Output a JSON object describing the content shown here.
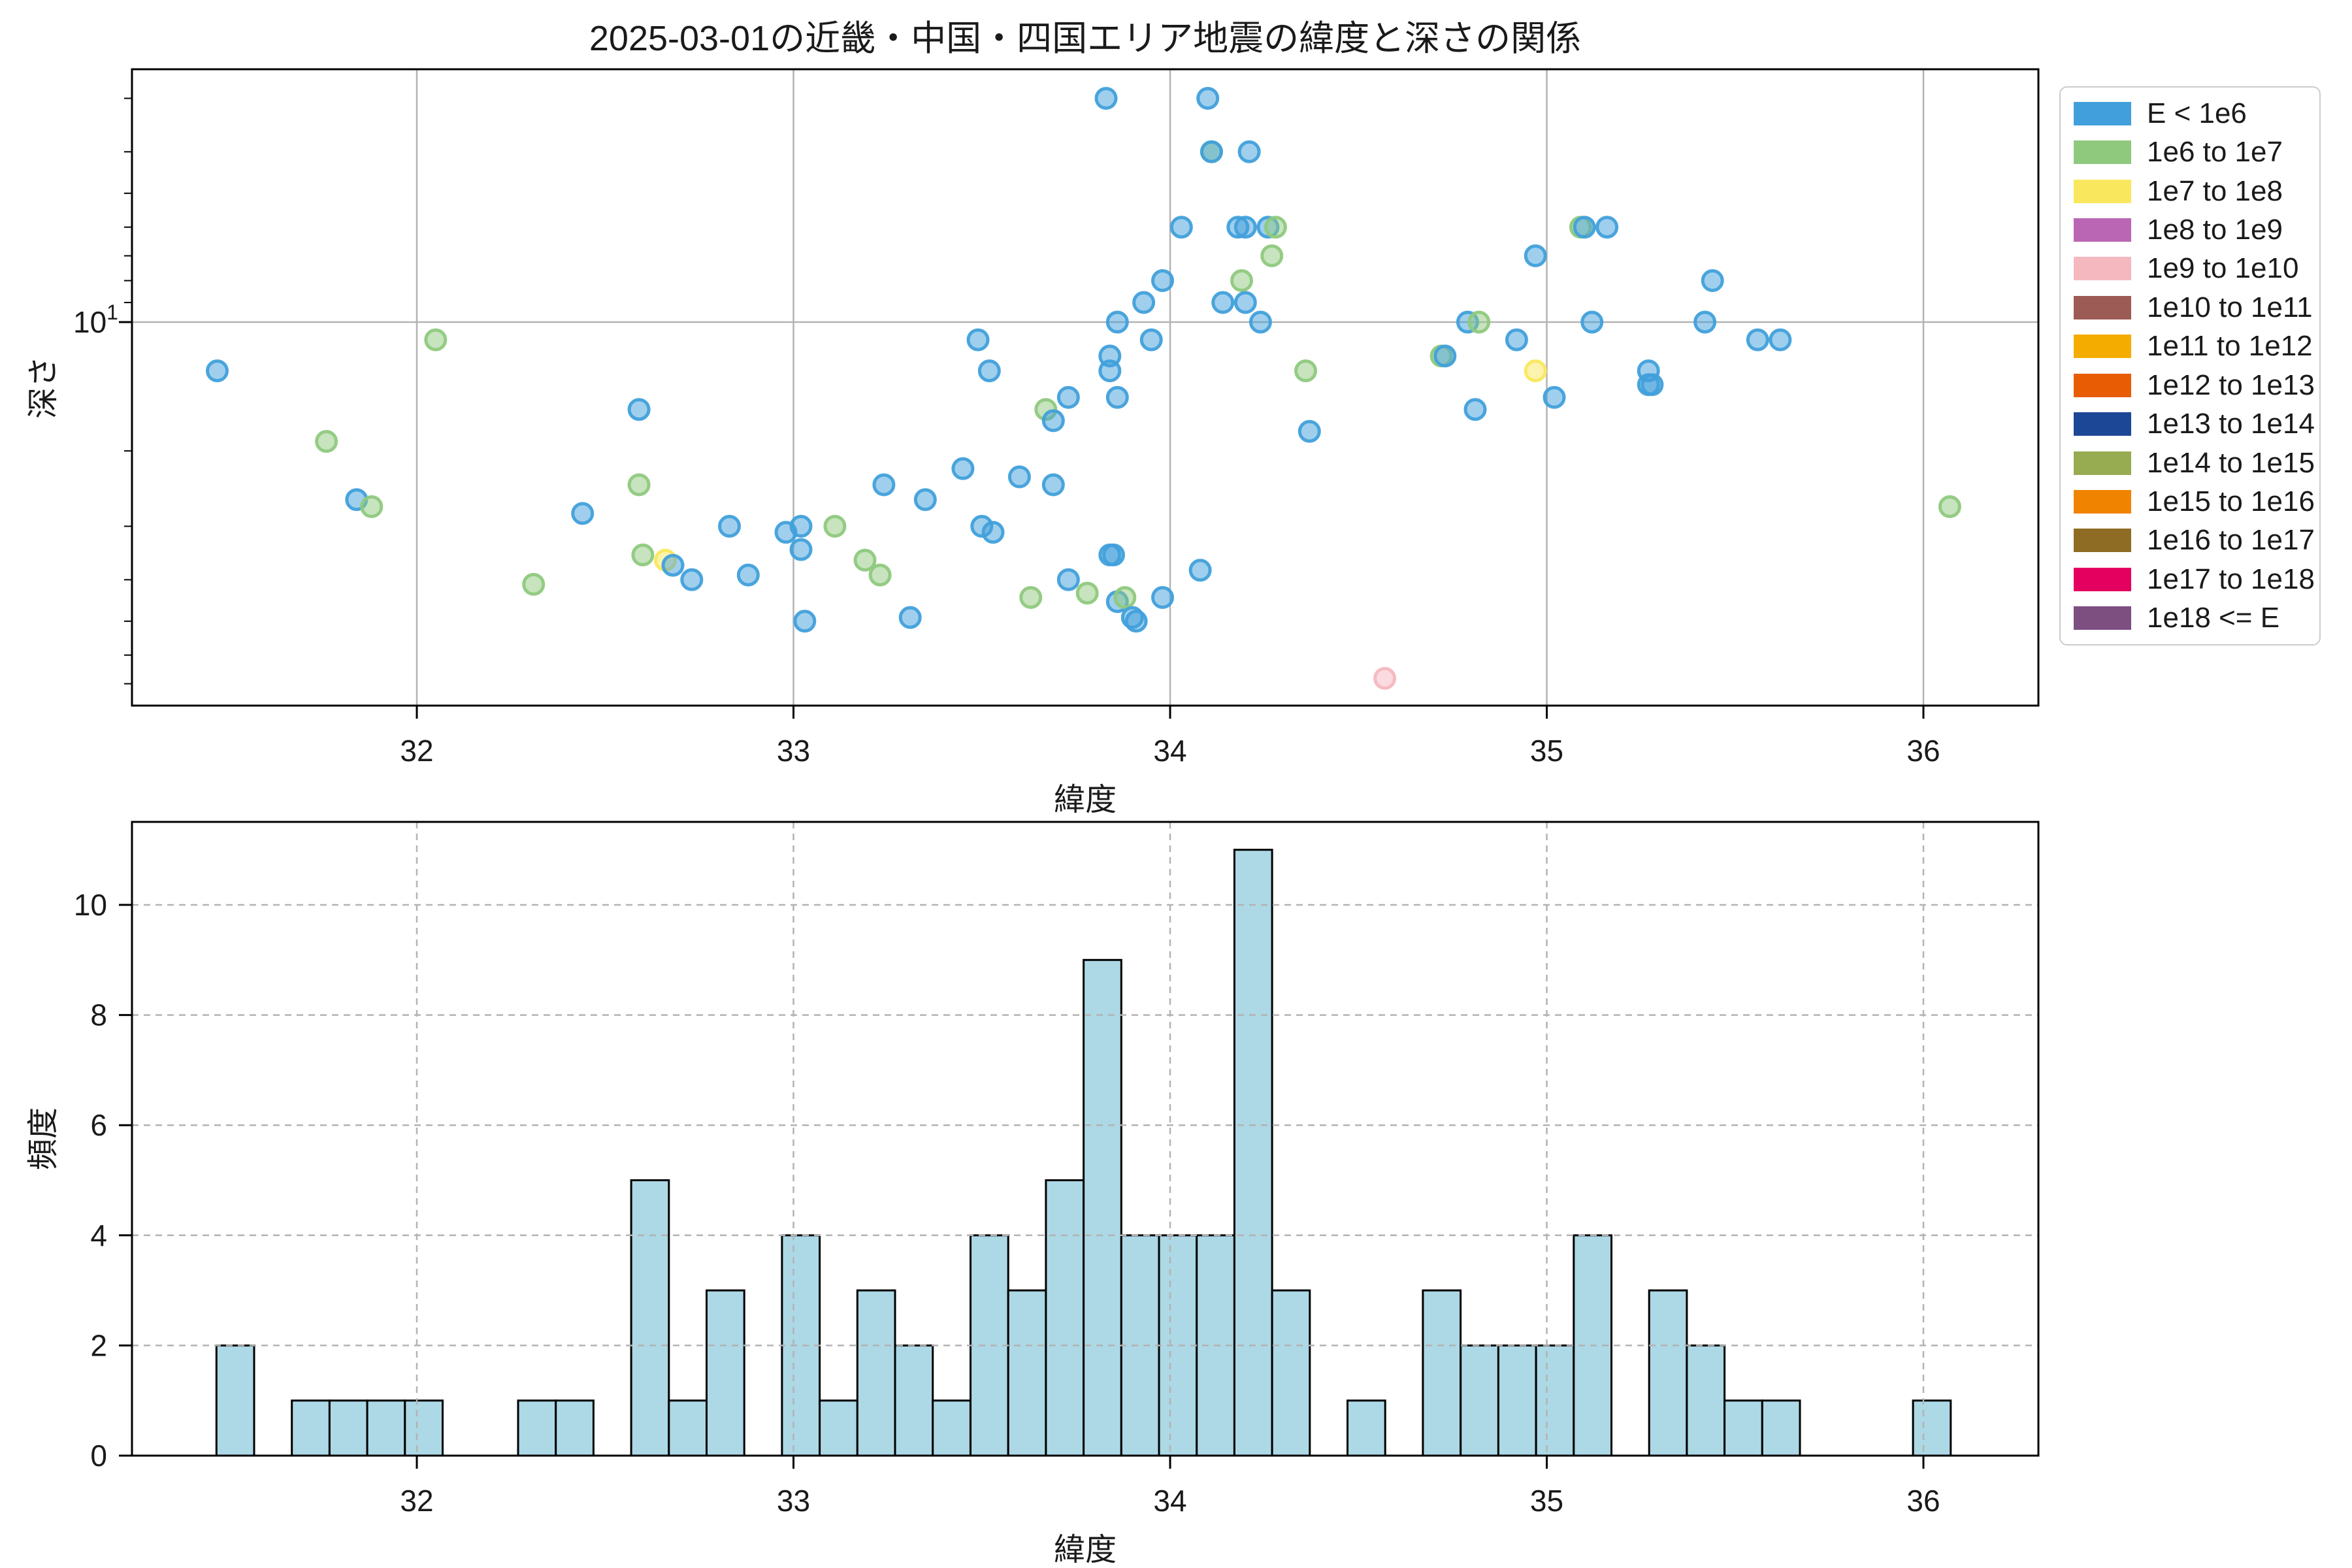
{
  "chart_data": [
    {
      "type": "scatter",
      "title": "2025-03-01の近畿・中国・四国エリア地震の緯度と深さの関係",
      "xlabel": "緯度",
      "ylabel": "深さ",
      "xlim": [
        31.24,
        36.3
      ],
      "x_ticks": [
        32,
        33,
        34,
        35,
        36
      ],
      "yaxis": {
        "scale": "log",
        "inverted": true,
        "top_value": 2.55,
        "bottom_value": 78.7,
        "major_tick_value": 10,
        "major_tick_label": "10",
        "major_tick_exponent": "1",
        "minor_tick_values": [
          3,
          4,
          5,
          6,
          7,
          8,
          9,
          20,
          30,
          40,
          50,
          60,
          70
        ]
      },
      "grid": {
        "x_gridlines": [
          32,
          33,
          34,
          35,
          36
        ],
        "y_gridlines": [
          10
        ],
        "style": "solid",
        "color": "#b3b3b3"
      },
      "points_format": "[latitude, depth_km, category_index]",
      "points": [
        [
          31.47,
          13,
          0
        ],
        [
          31.76,
          19,
          1
        ],
        [
          31.84,
          26,
          0
        ],
        [
          31.88,
          27,
          1
        ],
        [
          32.05,
          11,
          1
        ],
        [
          32.31,
          41,
          1
        ],
        [
          32.44,
          28,
          0
        ],
        [
          32.59,
          16,
          0
        ],
        [
          32.59,
          24,
          1
        ],
        [
          32.6,
          35,
          1
        ],
        [
          32.66,
          36,
          2
        ],
        [
          32.68,
          37,
          0
        ],
        [
          32.73,
          40,
          0
        ],
        [
          32.83,
          30,
          0
        ],
        [
          32.88,
          39,
          0
        ],
        [
          32.98,
          31,
          0
        ],
        [
          33.02,
          30,
          0
        ],
        [
          33.02,
          34,
          0
        ],
        [
          33.03,
          50,
          0
        ],
        [
          33.11,
          30,
          1
        ],
        [
          33.19,
          36,
          1
        ],
        [
          33.23,
          39,
          1
        ],
        [
          33.24,
          24,
          0
        ],
        [
          33.31,
          49,
          0
        ],
        [
          33.35,
          26,
          0
        ],
        [
          33.45,
          22,
          0
        ],
        [
          33.49,
          11,
          0
        ],
        [
          33.5,
          30,
          0
        ],
        [
          33.52,
          13,
          0
        ],
        [
          33.53,
          31,
          0
        ],
        [
          33.6,
          23,
          0
        ],
        [
          33.63,
          44,
          1
        ],
        [
          33.67,
          16,
          1
        ],
        [
          33.69,
          17,
          0
        ],
        [
          33.69,
          24,
          0
        ],
        [
          33.73,
          15,
          0
        ],
        [
          33.73,
          40,
          0
        ],
        [
          33.78,
          43,
          1
        ],
        [
          33.83,
          3,
          0
        ],
        [
          33.84,
          12,
          0
        ],
        [
          33.84,
          13,
          0
        ],
        [
          33.84,
          35,
          0
        ],
        [
          33.85,
          35,
          0
        ],
        [
          33.86,
          10,
          0
        ],
        [
          33.86,
          15,
          0
        ],
        [
          33.86,
          45,
          0
        ],
        [
          33.88,
          44,
          1
        ],
        [
          33.9,
          49,
          0
        ],
        [
          33.91,
          50,
          0
        ],
        [
          33.93,
          9,
          0
        ],
        [
          33.95,
          11,
          0
        ],
        [
          33.98,
          8,
          0
        ],
        [
          33.98,
          44,
          0
        ],
        [
          34.03,
          6,
          0
        ],
        [
          34.08,
          38,
          0
        ],
        [
          34.1,
          3,
          0
        ],
        [
          34.11,
          4,
          1
        ],
        [
          34.11,
          4,
          0
        ],
        [
          34.14,
          9,
          0
        ],
        [
          34.18,
          6,
          0
        ],
        [
          34.19,
          8,
          1
        ],
        [
          34.2,
          6,
          0
        ],
        [
          34.2,
          9,
          0
        ],
        [
          34.21,
          4,
          0
        ],
        [
          34.24,
          10,
          0
        ],
        [
          34.26,
          6,
          0
        ],
        [
          34.28,
          6,
          1
        ],
        [
          34.27,
          7,
          1
        ],
        [
          34.36,
          13,
          1
        ],
        [
          34.37,
          18,
          0
        ],
        [
          34.57,
          68,
          4
        ],
        [
          34.72,
          12,
          1
        ],
        [
          34.73,
          12,
          0
        ],
        [
          34.79,
          10,
          0
        ],
        [
          34.82,
          10,
          1
        ],
        [
          34.81,
          16,
          0
        ],
        [
          34.92,
          11,
          0
        ],
        [
          34.97,
          7,
          0
        ],
        [
          34.97,
          13,
          2
        ],
        [
          35.02,
          15,
          0
        ],
        [
          35.09,
          6,
          1
        ],
        [
          35.1,
          6,
          0
        ],
        [
          35.12,
          10,
          0
        ],
        [
          35.16,
          6,
          0
        ],
        [
          35.27,
          13,
          0
        ],
        [
          35.27,
          14,
          0
        ],
        [
          35.28,
          14,
          0
        ],
        [
          35.42,
          10,
          0
        ],
        [
          35.44,
          8,
          0
        ],
        [
          35.56,
          11,
          0
        ],
        [
          35.62,
          11,
          0
        ],
        [
          36.07,
          27,
          1
        ]
      ],
      "marker": {
        "radius": 15,
        "fill_opacity": 0.5,
        "stroke_opacity": 0.95,
        "stroke_width": 5
      },
      "legend": {
        "position": "outside-upper-right",
        "entries": [
          {
            "label": "E < 1e6",
            "color": "#41a0db"
          },
          {
            "label": "1e6 to 1e7",
            "color": "#8fc97e"
          },
          {
            "label": "1e7 to 1e8",
            "color": "#f9e85e"
          },
          {
            "label": "1e8 to 1e9",
            "color": "#bb66b4"
          },
          {
            "label": "1e9 to 1e10",
            "color": "#f5b8bf"
          },
          {
            "label": "1e10 to 1e11",
            "color": "#9c5b54"
          },
          {
            "label": "1e11 to 1e12",
            "color": "#f4ac01"
          },
          {
            "label": "1e12 to 1e13",
            "color": "#e85c03"
          },
          {
            "label": "1e13 to 1e14",
            "color": "#1c4796"
          },
          {
            "label": "1e14 to 1e15",
            "color": "#97ab51"
          },
          {
            "label": "1e15 to 1e16",
            "color": "#f08300"
          },
          {
            "label": "1e16 to 1e17",
            "color": "#8e6c24"
          },
          {
            "label": "1e17 to 1e18",
            "color": "#e4005e"
          },
          {
            "label": "1e18 <= E",
            "color": "#7c4f80"
          }
        ]
      }
    },
    {
      "type": "bar",
      "subtype": "histogram",
      "xlabel": "緯度",
      "ylabel": "頻度",
      "xlim": [
        31.24,
        36.3
      ],
      "x_ticks": [
        32,
        33,
        34,
        35,
        36
      ],
      "ylim": [
        0,
        11.5
      ],
      "y_ticks": [
        0,
        2,
        4,
        6,
        8,
        10
      ],
      "grid": {
        "style": "dashed",
        "color": "#b3b3b3",
        "x_gridlines": [
          32,
          33,
          34,
          35,
          36
        ],
        "y_gridlines": [
          2,
          4,
          6,
          8,
          10
        ]
      },
      "bin_start": 31.468,
      "bin_width": 0.1001,
      "counts": [
        2,
        0,
        1,
        1,
        1,
        1,
        0,
        0,
        1,
        1,
        0,
        5,
        1,
        3,
        0,
        4,
        1,
        3,
        2,
        1,
        4,
        3,
        5,
        9,
        4,
        4,
        4,
        11,
        3,
        0,
        1,
        0,
        3,
        2,
        2,
        2,
        4,
        0,
        3,
        2,
        1,
        1,
        0,
        0,
        0,
        1
      ],
      "total_count": 97,
      "bar_fill": "#add8e6",
      "bar_edge": "#000000"
    }
  ]
}
